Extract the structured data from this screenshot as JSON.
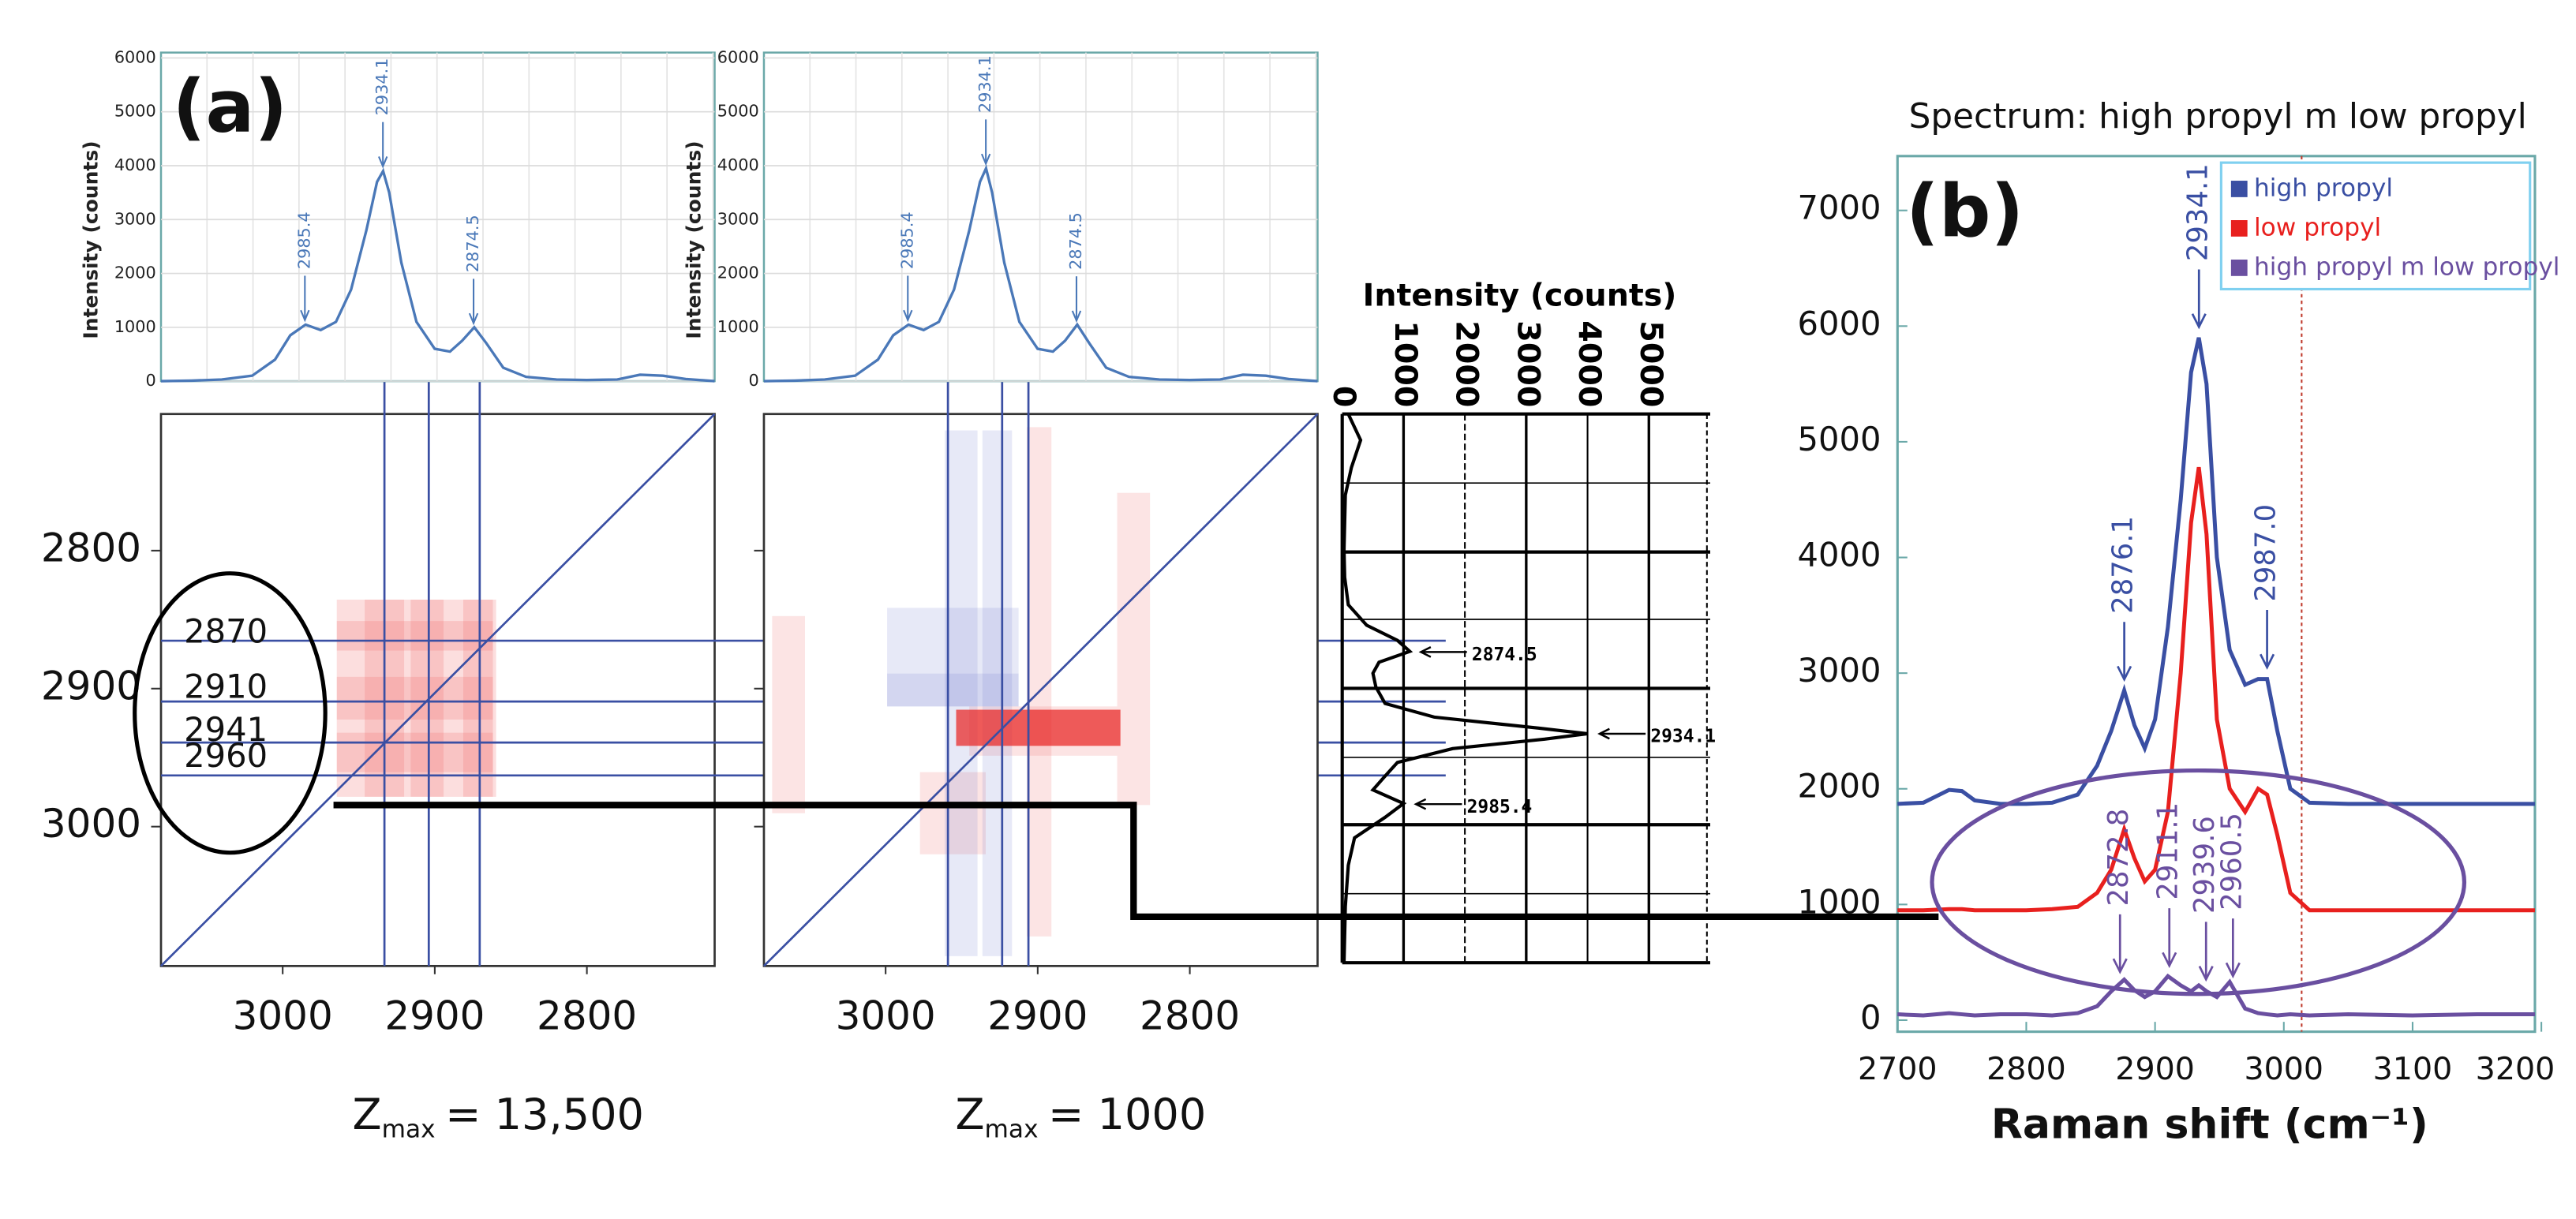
{
  "chart_data": [
    {
      "type": "line",
      "panel_label": "(a)",
      "ylabel": "Intensity (counts)",
      "xlim": [
        3080,
        2716
      ],
      "ylim": [
        0,
        6100
      ],
      "yticks": [
        0,
        1000,
        2000,
        3000,
        4000,
        5000,
        6000
      ],
      "grid": true,
      "color": "#4a78b8",
      "x": [
        3080,
        3060,
        3040,
        3020,
        3005,
        2995,
        2985,
        2975,
        2965,
        2955,
        2945,
        2938,
        2934,
        2930,
        2922,
        2912,
        2900,
        2890,
        2882,
        2874,
        2866,
        2855,
        2840,
        2820,
        2800,
        2780,
        2765,
        2750,
        2735,
        2716
      ],
      "values": [
        0,
        10,
        30,
        100,
        400,
        850,
        1050,
        950,
        1100,
        1700,
        2800,
        3700,
        3900,
        3500,
        2200,
        1100,
        600,
        550,
        750,
        1000,
        700,
        250,
        80,
        30,
        20,
        30,
        120,
        100,
        40,
        0
      ],
      "peaks": [
        2985.4,
        2934.1,
        2874.5
      ]
    },
    {
      "type": "line",
      "ylabel": "Intensity (counts)",
      "xlim": [
        3080,
        2716
      ],
      "ylim": [
        0,
        6100
      ],
      "yticks": [
        0,
        1000,
        2000,
        3000,
        4000,
        5000,
        6000
      ],
      "grid": true,
      "color": "#4a78b8",
      "x": [
        3080,
        3060,
        3040,
        3020,
        3005,
        2995,
        2985,
        2975,
        2965,
        2955,
        2945,
        2938,
        2934,
        2930,
        2922,
        2912,
        2900,
        2890,
        2882,
        2874,
        2866,
        2855,
        2840,
        2820,
        2800,
        2780,
        2765,
        2750,
        2735,
        2716
      ],
      "values": [
        0,
        10,
        30,
        100,
        400,
        850,
        1050,
        950,
        1100,
        1700,
        2800,
        3700,
        3950,
        3500,
        2200,
        1100,
        600,
        550,
        750,
        1050,
        700,
        250,
        80,
        30,
        20,
        30,
        120,
        100,
        40,
        0
      ],
      "peaks": [
        2985.4,
        2934.1,
        2874.5
      ]
    },
    {
      "type": "heatmap",
      "xlim": [
        3080,
        2716
      ],
      "ylim": [
        3101,
        2701
      ],
      "xticks": [
        3000,
        2900,
        2800
      ],
      "yticks": [
        2800,
        2900,
        3000
      ],
      "ytick_labels": true,
      "labels": [
        2870,
        2910,
        2941,
        2960
      ],
      "zmax": {
        "symbol": "Z",
        "subscript": "max",
        "text": "= 13,500"
      }
    },
    {
      "type": "heatmap",
      "xlim": [
        3080,
        2716
      ],
      "ylim": [
        3101,
        2701
      ],
      "xticks": [
        3000,
        2900,
        2800
      ],
      "yticks": [
        2800,
        2900,
        3000
      ],
      "ytick_labels": false,
      "zmax": {
        "symbol": "Z",
        "subscript": "max",
        "text": "= 1000"
      }
    },
    {
      "type": "profile",
      "xlabel": "Intensity (counts)",
      "xlim": [
        0,
        6000
      ],
      "xticks": [
        0,
        1000,
        2000,
        3000,
        4000,
        5000
      ],
      "ylim": [
        3101,
        2701
      ],
      "color": "#000000",
      "y": [
        2701,
        2720,
        2740,
        2760,
        2780,
        2800,
        2820,
        2840,
        2855,
        2866,
        2874,
        2882,
        2890,
        2900,
        2912,
        2922,
        2930,
        2934,
        2938,
        2945,
        2955,
        2965,
        2975,
        2985,
        2995,
        3010,
        3030,
        3060,
        3101
      ],
      "values": [
        100,
        300,
        150,
        50,
        40,
        30,
        40,
        100,
        400,
        900,
        1100,
        600,
        500,
        550,
        700,
        1500,
        3200,
        4000,
        3300,
        1800,
        900,
        700,
        500,
        1000,
        700,
        200,
        100,
        50,
        30
      ],
      "peaks": [
        2874.5,
        2934.1,
        2985.4
      ]
    },
    {
      "type": "multiline",
      "panel_label": "(b)",
      "title": "Spectrum: high propyl m low propyl",
      "xlabel": "Raman shift (cm⁻¹)",
      "xlim": [
        2700,
        3195
      ],
      "ylim": [
        -100,
        7470
      ],
      "xticks": [
        2700,
        2800,
        2900,
        3000,
        3100,
        3200
      ],
      "yticks": [
        0,
        1000,
        2000,
        3000,
        4000,
        5000,
        6000,
        7000
      ],
      "legend": "upper right",
      "x": [
        2700,
        2720,
        2740,
        2750,
        2760,
        2780,
        2800,
        2820,
        2840,
        2855,
        2866,
        2876,
        2884,
        2892,
        2900,
        2910,
        2920,
        2928,
        2934,
        2940,
        2948,
        2958,
        2970,
        2980,
        2987,
        2995,
        3005,
        3020,
        3050,
        3100,
        3150,
        3195
      ],
      "series": [
        {
          "name": "high propyl",
          "color": "#3a4fa3",
          "values": [
            1870,
            1880,
            1990,
            1980,
            1900,
            1870,
            1870,
            1880,
            1950,
            2200,
            2500,
            2850,
            2550,
            2350,
            2600,
            3400,
            4500,
            5600,
            5900,
            5500,
            4000,
            3200,
            2900,
            2950,
            2950,
            2500,
            2000,
            1880,
            1870,
            1870,
            1870,
            1870
          ],
          "peaks": [
            2876.1,
            2934.1,
            {
              "value": 2987,
              "label": "2987.0"
            }
          ]
        },
        {
          "name": "low propyl",
          "color": "#e8201e",
          "values": [
            950,
            950,
            960,
            960,
            950,
            950,
            950,
            960,
            980,
            1100,
            1300,
            1650,
            1400,
            1200,
            1300,
            1800,
            3000,
            4300,
            4780,
            4200,
            2600,
            2000,
            1800,
            2000,
            1950,
            1600,
            1100,
            950,
            950,
            950,
            950,
            950
          ]
        },
        {
          "name": "high propyl m low propyl",
          "color": "#6a4fa0",
          "values": [
            50,
            40,
            60,
            50,
            40,
            50,
            50,
            40,
            60,
            120,
            250,
            350,
            260,
            200,
            250,
            380,
            300,
            250,
            300,
            250,
            200,
            330,
            100,
            60,
            50,
            40,
            50,
            40,
            50,
            40,
            50,
            50
          ],
          "peaks": [
            2872.8,
            2911.1,
            2939.6,
            2960.5
          ]
        }
      ]
    }
  ]
}
